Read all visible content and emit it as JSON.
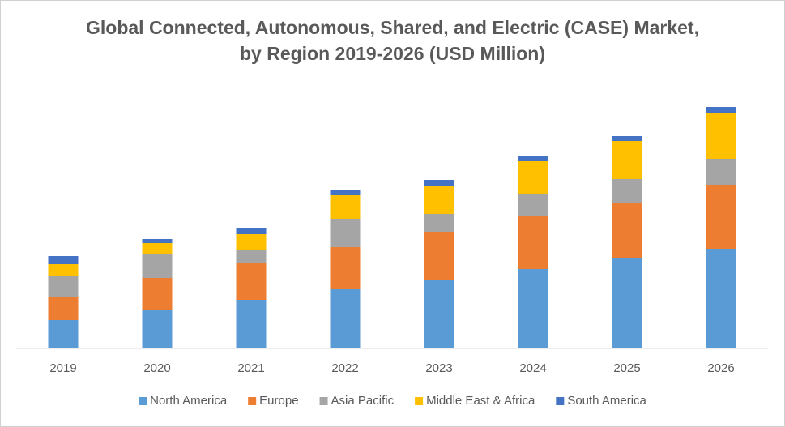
{
  "chart_data": {
    "type": "stacked_bar",
    "title": "Global Connected, Autonomous, Shared, and Electric (CASE) Market, by Region 2019-2026 (USD Million)",
    "categories": [
      "2019",
      "2020",
      "2021",
      "2022",
      "2023",
      "2024",
      "2025",
      "2026"
    ],
    "series": [
      {
        "name": "North America",
        "color": "#5b9bd5",
        "values": [
          35,
          47,
          60,
          73,
          85,
          98,
          111,
          123
        ]
      },
      {
        "name": "Europe",
        "color": "#ed7d31",
        "values": [
          28,
          40,
          46,
          52,
          59,
          66,
          69,
          79
        ]
      },
      {
        "name": "Asia Pacific",
        "color": "#a5a5a5",
        "values": [
          26,
          29,
          16,
          35,
          22,
          26,
          29,
          32
        ]
      },
      {
        "name": "Middle East & Africa",
        "color": "#ffc000",
        "values": [
          15,
          14,
          19,
          29,
          35,
          41,
          47,
          57
        ]
      },
      {
        "name": "South America",
        "color": "#4472c4",
        "values": [
          10,
          5,
          7,
          6,
          7,
          6,
          6,
          7
        ]
      }
    ]
  }
}
